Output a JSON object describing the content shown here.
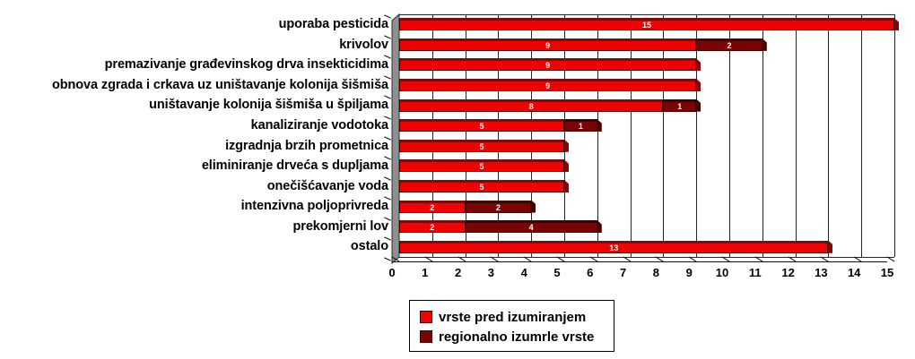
{
  "chart_data": {
    "type": "bar",
    "orientation": "horizontal",
    "stacked": true,
    "categories": [
      "uporaba pesticida",
      "krivolov",
      "premazivanje građevinskog drva insekticidima",
      "obnova zgrada i crkava uz uništavanje kolonija šišmiša",
      "uništavanje kolonija šišmiša u špiljama",
      "kanaliziranje vodotoka",
      "izgradnja brzih prometnica",
      "eliminiranje drveća s dupljama",
      "onečišćavanje voda",
      "intenzivna poljoprivreda",
      "prekomjerni lov",
      "ostalo"
    ],
    "series": [
      {
        "name": "vrste pred izumiranjem",
        "color": "#ee0202",
        "color_dark": "#8c0303",
        "values": [
          15,
          9,
          9,
          9,
          8,
          5,
          5,
          5,
          5,
          2,
          2,
          13
        ]
      },
      {
        "name": "regionalno izumrle vrste",
        "color": "#7a0303",
        "color_dark": "#400000",
        "values": [
          0,
          2,
          0,
          0,
          1,
          1,
          0,
          0,
          0,
          2,
          4,
          0
        ]
      }
    ],
    "xlim": [
      0,
      15
    ],
    "xticks": [
      0,
      1,
      2,
      3,
      4,
      5,
      6,
      7,
      8,
      9,
      10,
      11,
      12,
      13,
      14,
      15
    ],
    "grid": "vertical",
    "legend_position": "bottom-center",
    "value_labels": {
      "color": "#ffffff",
      "position": "inside-center"
    },
    "wall_color": "#8f8f8f",
    "background_color": "#ffffff"
  }
}
